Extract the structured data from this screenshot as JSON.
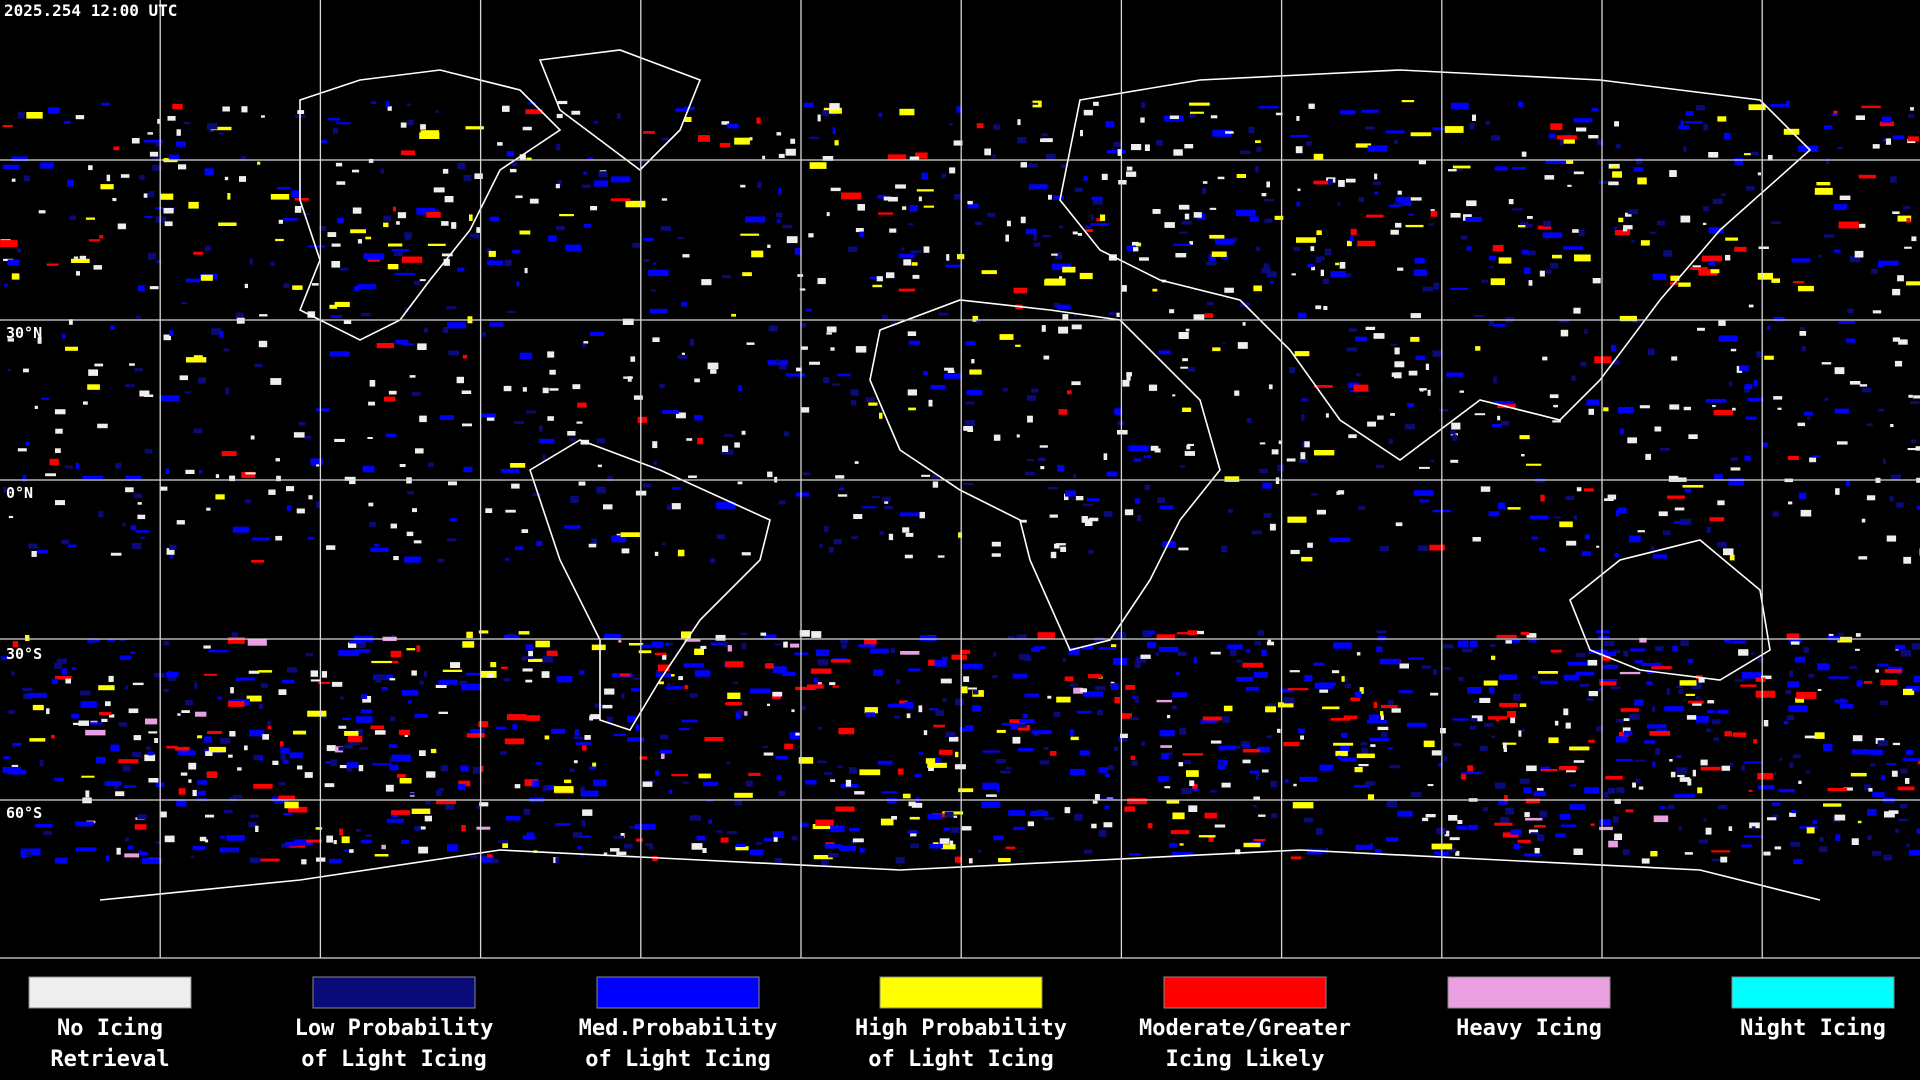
{
  "timestamp": "2025.254 12:00 UTC",
  "latitude_labels": [
    "30°N",
    "0°N",
    "30°S",
    "60°S"
  ],
  "legend": [
    {
      "label": [
        "No Icing",
        "Retrieval"
      ],
      "color": "#eeeeee"
    },
    {
      "label": [
        "Low Probability",
        "of Light Icing"
      ],
      "color": "#0a0a78"
    },
    {
      "label": [
        "Med.Probability",
        "of Light Icing"
      ],
      "color": "#0000ff"
    },
    {
      "label": [
        "High Probability",
        "of Light Icing"
      ],
      "color": "#ffff00"
    },
    {
      "label": [
        "Moderate/Greater",
        "Icing Likely"
      ],
      "color": "#ff0000"
    },
    {
      "label": [
        "Heavy Icing"
      ],
      "color": "#e8a0e0"
    },
    {
      "label": [
        "Night Icing"
      ],
      "color": "#00ffff"
    }
  ]
}
